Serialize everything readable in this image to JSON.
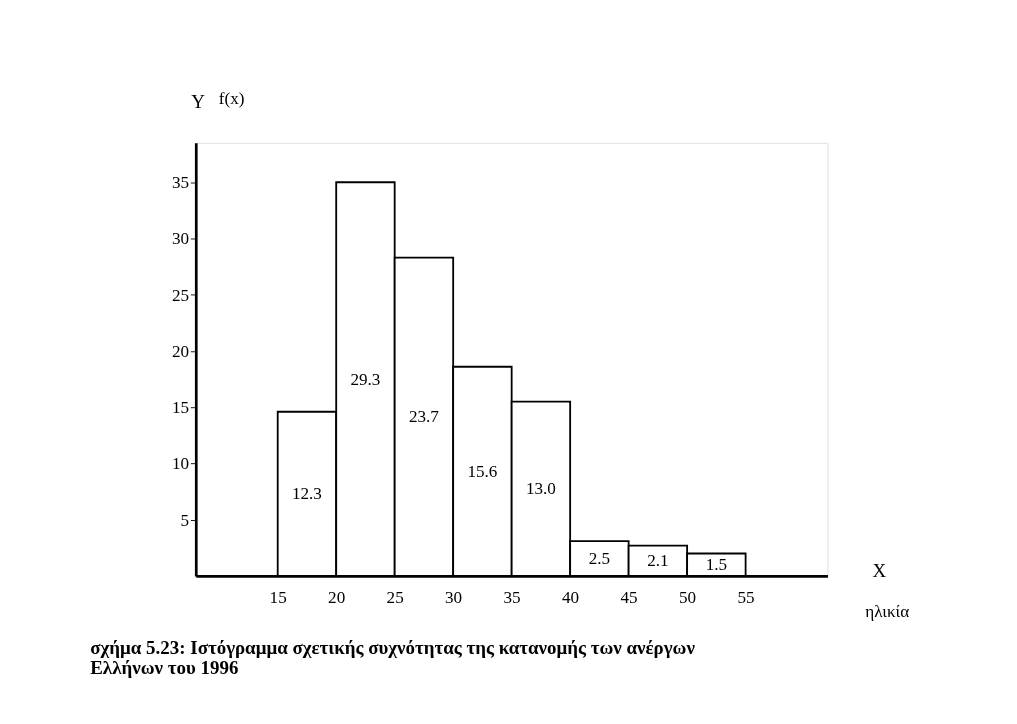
{
  "chart_data": {
    "type": "histogram",
    "title": [
      "σχήμα 5.23: Ιστόγραμμα σχετικής συχνότητας της κατανομής των ανέργων",
      "Ελλήνων του 1996"
    ],
    "xlabel": "ηλικία",
    "ylabel": "f(x)",
    "annotations": [
      "Y",
      "X",
      "12.3",
      "29.3",
      "23.7",
      "15.6",
      "13.0",
      "2.5",
      "2.1",
      "1.5"
    ],
    "bins": [
      15,
      20,
      25,
      30,
      35,
      40,
      45,
      50,
      55
    ],
    "values": [
      14.6,
      35.0,
      28.3,
      18.6,
      15.5,
      3.1,
      2.7,
      2.0
    ],
    "color": "#ffffff",
    "xlim": [
      8,
      62
    ],
    "ylim": [
      0,
      38.5
    ],
    "xticks": [
      15,
      20,
      25,
      30,
      35,
      40,
      45,
      50,
      55
    ],
    "yticks": [
      5,
      10,
      15,
      20,
      25,
      30,
      35
    ],
    "grid": false
  }
}
